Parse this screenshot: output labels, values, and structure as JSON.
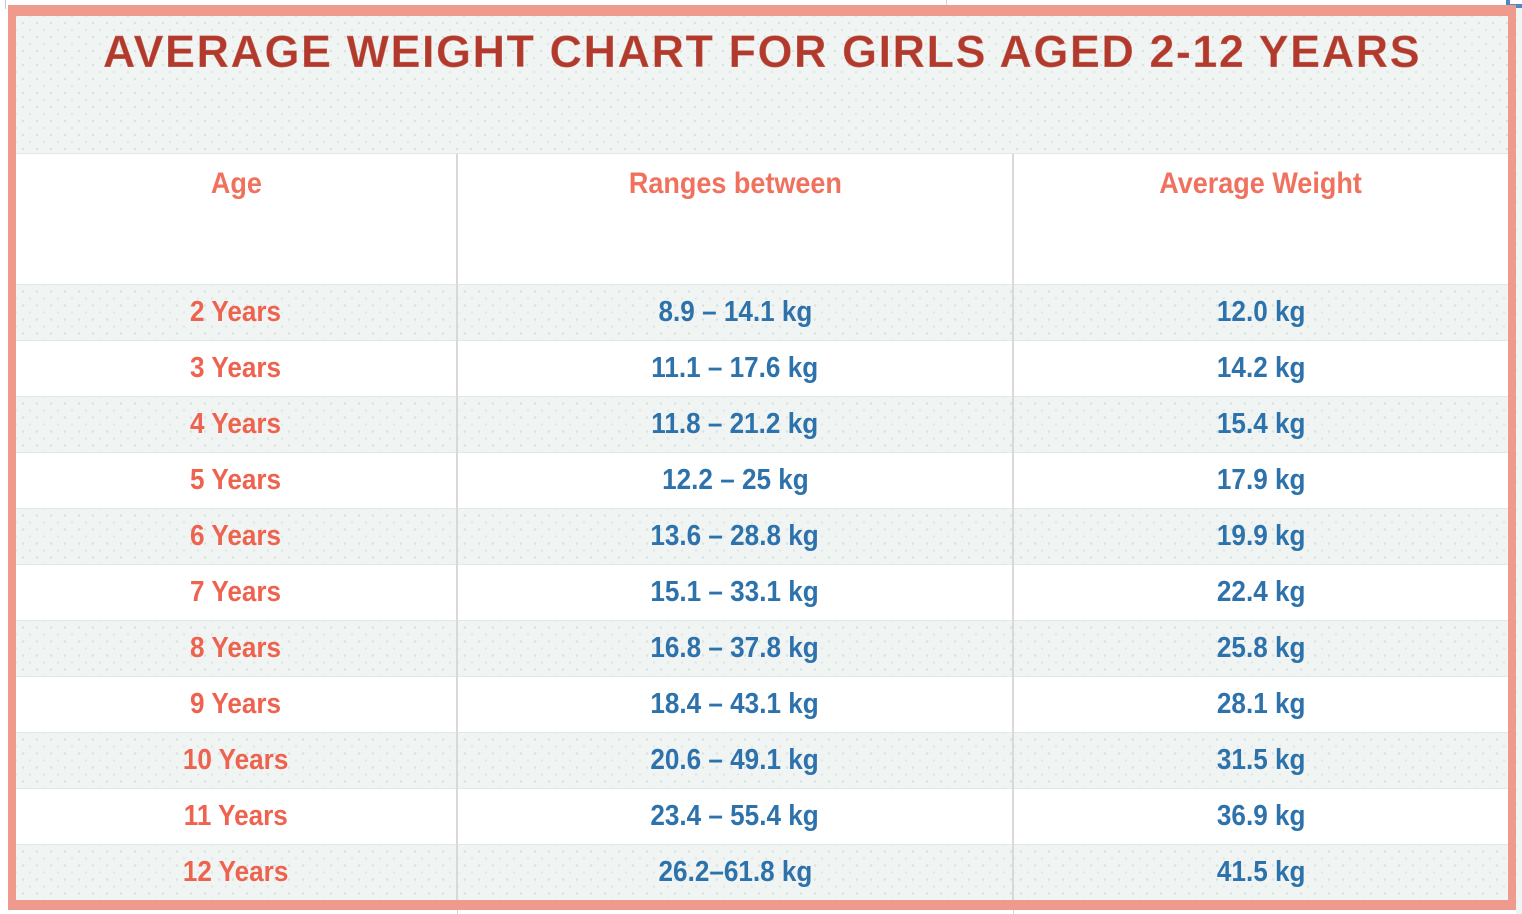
{
  "chart_data": {
    "type": "table",
    "title": "AVERAGE WEIGHT CHART FOR GIRLS AGED 2-12 YEARS",
    "columns": [
      "Age",
      "Ranges between",
      "Average Weight"
    ],
    "rows": [
      [
        "2 Years",
        "8.9 – 14.1 kg",
        "12.0 kg"
      ],
      [
        "3 Years",
        "11.1 – 17.6 kg",
        "14.2 kg"
      ],
      [
        "4 Years",
        "11.8 – 21.2 kg",
        "15.4 kg"
      ],
      [
        "5 Years",
        "12.2 – 25 kg",
        "17.9 kg"
      ],
      [
        "6 Years",
        "13.6 – 28.8 kg",
        "19.9 kg"
      ],
      [
        "7 Years",
        "15.1 – 33.1 kg",
        "22.4 kg"
      ],
      [
        "8 Years",
        "16.8 – 37.8 kg",
        "25.8 kg"
      ],
      [
        "9 Years",
        "18.4 – 43.1 kg",
        "28.1 kg"
      ],
      [
        "10 Years",
        "20.6 – 49.1 kg",
        "31.5 kg"
      ],
      [
        "11 Years",
        "23.4 – 55.4 kg",
        "36.9 kg"
      ],
      [
        "12 Years",
        "26.2–61.8 kg",
        "41.5 kg"
      ]
    ],
    "numeric": {
      "ages_years": [
        2,
        3,
        4,
        5,
        6,
        7,
        8,
        9,
        10,
        11,
        12
      ],
      "range_min_kg": [
        8.9,
        11.1,
        11.8,
        12.2,
        13.6,
        15.1,
        16.8,
        18.4,
        20.6,
        23.4,
        26.2
      ],
      "range_max_kg": [
        14.1,
        17.6,
        21.2,
        25,
        28.8,
        33.1,
        37.8,
        43.1,
        49.1,
        55.4,
        61.8
      ],
      "average_kg": [
        12.0,
        14.2,
        15.4,
        17.9,
        19.9,
        22.4,
        25.8,
        28.1,
        31.5,
        36.9,
        41.5
      ]
    },
    "layout_hints": {
      "grid": "row-separators-and-column-separators",
      "alternating_rows": true,
      "first_data_row_shaded": true
    }
  },
  "colors": {
    "border_salmon": "#f09a8d",
    "title_red": "#b23a2c",
    "header_text": "#f0725e",
    "age_text": "#ee6350",
    "value_blue": "#2e72ac",
    "row_alt_bg": "#f0f4f2",
    "selection_blue": "#4a8ac4"
  }
}
